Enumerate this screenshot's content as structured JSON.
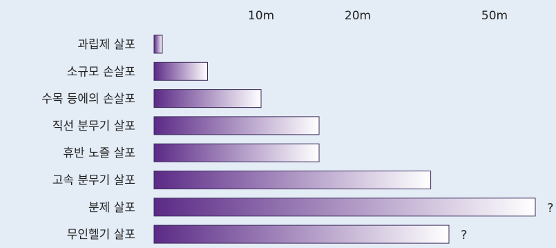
{
  "chart_data": {
    "type": "bar",
    "orientation": "horizontal",
    "title": "",
    "xlabel": "",
    "ylabel": "",
    "x_ticks": [
      {
        "value": 10,
        "label": "10m"
      },
      {
        "value": 20,
        "label": "20m"
      },
      {
        "value": 50,
        "label": "50m"
      }
    ],
    "x_axis_position": "top",
    "grid": false,
    "legend": "none",
    "categories": [
      "과립제 살포",
      "소규모 손살포",
      "수목 등에의 손살포",
      "직선 분무기 살포",
      "휴반 노즐 살포",
      "고속 분무기 살포",
      "분제 살포",
      "무인헬기 살포"
    ],
    "values": [
      0.5,
      5,
      10,
      16,
      16,
      36,
      65,
      40
    ],
    "annotations": [
      "",
      "",
      "",
      "",
      "",
      "",
      "?",
      "?"
    ],
    "colors": {
      "bar_start": "#5b2a86",
      "bar_end": "#ffffff",
      "bar_border": "#3a2a5a",
      "background": "#e4ecf6"
    }
  }
}
